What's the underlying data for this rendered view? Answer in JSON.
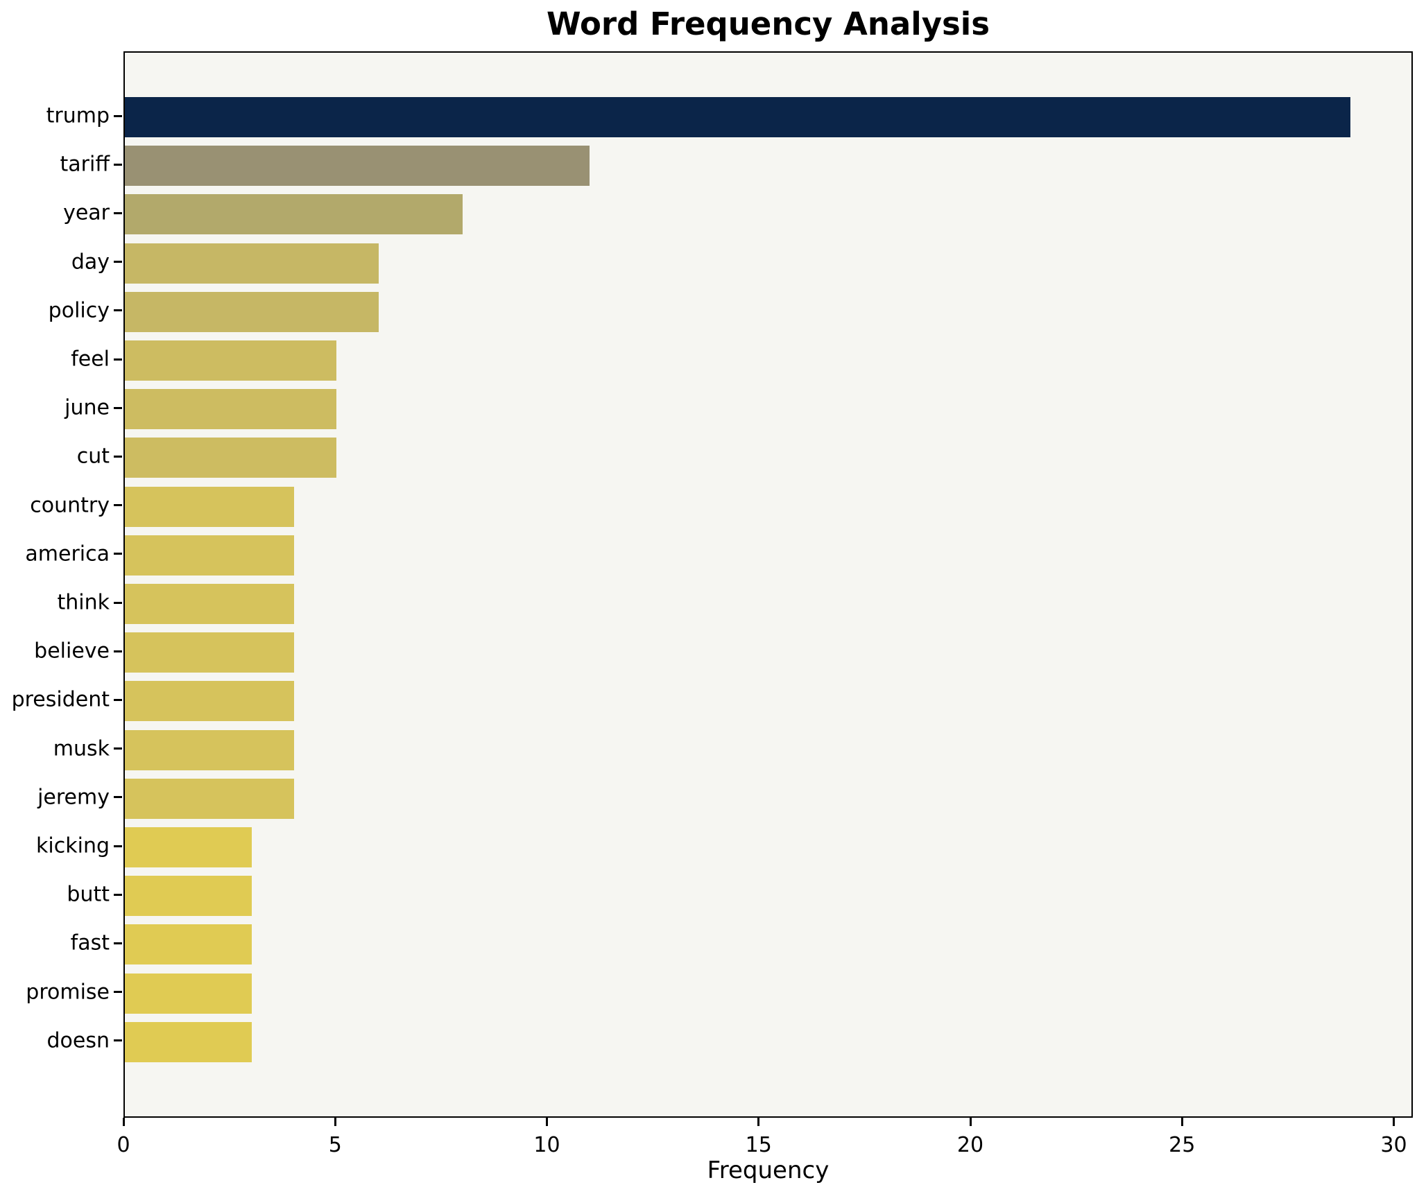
{
  "title": "Word Frequency Analysis",
  "x_axis_label": "Frequency",
  "colors": {
    "plot_background": "#f6f6f2",
    "figure_background": "#ffffff",
    "axis": "#000000",
    "max_bar": "#0b2549",
    "min_bar": "#e0cb53"
  },
  "chart_data": {
    "type": "bar",
    "orientation": "horizontal",
    "title": "Word Frequency Analysis",
    "xlabel": "Frequency",
    "ylabel": "",
    "categories": [
      "trump",
      "tariff",
      "year",
      "day",
      "policy",
      "feel",
      "june",
      "cut",
      "country",
      "america",
      "think",
      "believe",
      "president",
      "musk",
      "jeremy",
      "kicking",
      "butt",
      "fast",
      "promise",
      "doesn"
    ],
    "values": [
      29,
      11,
      8,
      6,
      6,
      5,
      5,
      5,
      4,
      4,
      4,
      4,
      4,
      4,
      4,
      3,
      3,
      3,
      3,
      3
    ],
    "bar_colors": [
      "#0b2549",
      "#999173",
      "#b2a96b",
      "#c6b765",
      "#c6b765",
      "#cdbc61",
      "#cdbc61",
      "#cdbc61",
      "#d6c35c",
      "#d6c35c",
      "#d6c35c",
      "#d6c35c",
      "#d6c35c",
      "#d6c35c",
      "#d6c35c",
      "#e0cb53",
      "#e0cb53",
      "#e0cb53",
      "#e0cb53",
      "#e0cb53"
    ],
    "xticks": [
      0,
      5,
      10,
      15,
      20,
      25,
      30
    ],
    "xlim": [
      0,
      30.45
    ],
    "grid": false,
    "legend": "none",
    "colormap": "cividis (dark navy = highest frequency, yellow = lowest)"
  }
}
